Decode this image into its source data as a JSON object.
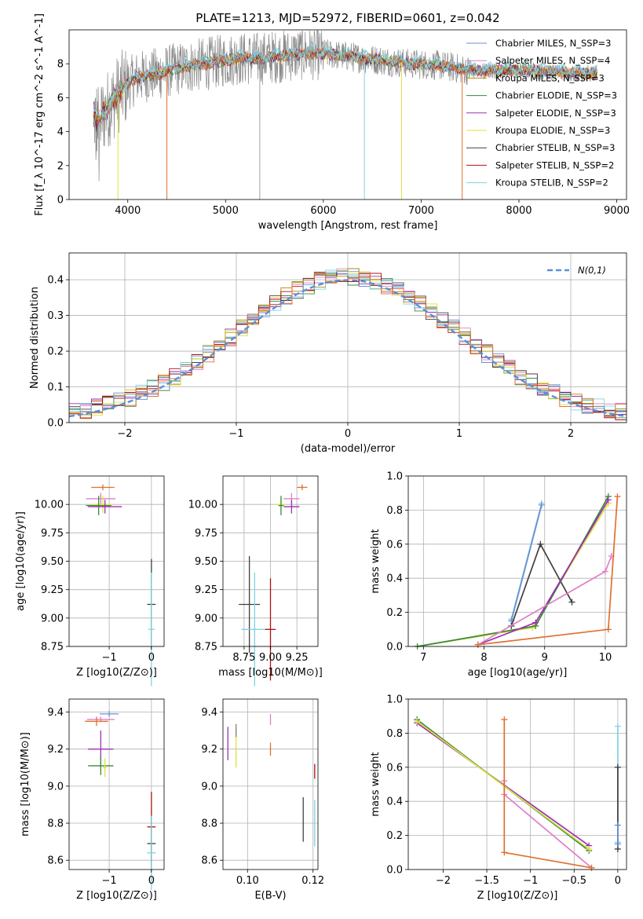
{
  "figure_title": "PLATE=1213, MJD=52972, FIBERID=0601, z=0.042",
  "chart_data": [
    {
      "name": "spectrum",
      "type": "line",
      "xlabel": "wavelength [Angstrom, rest frame]",
      "ylabel": "Flux [f_λ 10^-17 erg cm^-2 s^-1 A^-1]",
      "xlim": [
        3400,
        9100
      ],
      "ylim": [
        0,
        10
      ],
      "xticks": [
        4000,
        5000,
        6000,
        7000,
        8000,
        9000
      ],
      "yticks": [
        0,
        2,
        4,
        6,
        8
      ],
      "legend": "upper right",
      "series": [
        {
          "name": "Chabrier MILES, N_SSP=3",
          "color": "#6b8fd6"
        },
        {
          "name": "Salpeter MILES, N_SSP=4",
          "color": "#e07fc6"
        },
        {
          "name": "Kroupa MILES, N_SSP=3",
          "color": "#b8860b"
        },
        {
          "name": "Chabrier ELODIE, N_SSP=3",
          "color": "#3a8a3a"
        },
        {
          "name": "Salpeter ELODIE, N_SSP=3",
          "color": "#9b30b5"
        },
        {
          "name": "Kroupa ELODIE, N_SSP=3",
          "color": "#e0e040"
        },
        {
          "name": "Chabrier STELIB, N_SSP=3",
          "color": "#404040"
        },
        {
          "name": "Salpeter STELIB, N_SSP=2",
          "color": "#b01010"
        },
        {
          "name": "Kroupa STELIB, N_SSP=2",
          "color": "#7fd3e0"
        }
      ],
      "continuum": [
        [
          3650,
          5.0
        ],
        [
          3700,
          4.6
        ],
        [
          3800,
          5.4
        ],
        [
          3900,
          6.2
        ],
        [
          4000,
          6.8
        ],
        [
          4100,
          7.2
        ],
        [
          4300,
          7.4
        ],
        [
          4500,
          7.7
        ],
        [
          4700,
          7.9
        ],
        [
          4900,
          8.1
        ],
        [
          5100,
          8.3
        ],
        [
          5300,
          8.3
        ],
        [
          5500,
          8.4
        ],
        [
          5800,
          8.6
        ],
        [
          6000,
          8.6
        ],
        [
          6300,
          8.4
        ],
        [
          6600,
          8.2
        ],
        [
          6900,
          8.0
        ],
        [
          7200,
          7.9
        ],
        [
          7500,
          7.6
        ],
        [
          7800,
          7.6
        ],
        [
          8100,
          7.6
        ],
        [
          8400,
          7.5
        ],
        [
          8800,
          7.4
        ]
      ],
      "drops": [
        [
          3900,
          "#e0e040"
        ],
        [
          4400,
          "#e07030"
        ],
        [
          6420,
          "#7fd3e0"
        ],
        [
          6800,
          "#e0e040"
        ],
        [
          7420,
          "#e07030"
        ]
      ]
    },
    {
      "name": "residuals",
      "type": "line",
      "xlabel": "(data-model)/error",
      "ylabel": "Normed distribution",
      "xlim": [
        -2.5,
        2.5
      ],
      "ylim": [
        0,
        0.475
      ],
      "xticks": [
        -2,
        -1,
        0,
        1,
        2
      ],
      "yticks": [
        0.0,
        0.1,
        0.2,
        0.3,
        0.4
      ],
      "legend_label": "N(0,1)",
      "gauss_color": "#5b8fd9"
    },
    {
      "name": "age_vs_Z",
      "type": "scatter",
      "xlabel": "Z [log10(Z/Z⊙)]",
      "ylabel": "age  [log10(age/yr)]",
      "xlim": [
        -1.95,
        0.3
      ],
      "ylim": [
        8.75,
        10.25
      ],
      "xticks": [
        -1,
        0
      ],
      "yticks": [
        8.75,
        9.0,
        9.25,
        9.5,
        9.75,
        10.0
      ],
      "points": [
        {
          "x": -1.15,
          "y": 10.15,
          "xe": 0.55,
          "ye": 0.05,
          "c": "#e07030"
        },
        {
          "x": -1.2,
          "y": 10.05,
          "xe": 0.7,
          "ye": 0.1,
          "c": "#e07fc6"
        },
        {
          "x": -1.15,
          "y": 10.0,
          "xe": 0.5,
          "ye": 0.15,
          "c": "#e0e040"
        },
        {
          "x": -1.25,
          "y": 9.99,
          "xe": 0.6,
          "ye": 0.17,
          "c": "#3a8a3a"
        },
        {
          "x": -1.1,
          "y": 9.98,
          "xe": 0.8,
          "ye": 0.12,
          "c": "#9b30b5"
        },
        {
          "x": 0.0,
          "y": 9.12,
          "xe": 0.2,
          "ye": 0.8,
          "c": "#404040"
        },
        {
          "x": 0.0,
          "y": 8.9,
          "xe": 0.15,
          "ye": 1.0,
          "c": "#7fd3e0"
        }
      ]
    },
    {
      "name": "age_vs_mass",
      "type": "scatter",
      "xlabel": "mass [log10(M/M⊙)]",
      "ylabel": "",
      "xlim": [
        8.55,
        9.45
      ],
      "ylim": [
        8.75,
        10.25
      ],
      "xticks": [
        8.75,
        9.0,
        9.25
      ],
      "yticks": [
        8.75,
        9.0,
        9.25,
        9.5,
        9.75,
        10.0
      ],
      "points": [
        {
          "x": 9.3,
          "y": 10.15,
          "xe": 0.1,
          "ye": 0.05,
          "c": "#e07030"
        },
        {
          "x": 9.2,
          "y": 10.05,
          "xe": 0.15,
          "ye": 0.1,
          "c": "#e07fc6"
        },
        {
          "x": 9.1,
          "y": 10.0,
          "xe": 0.1,
          "ye": 0.12,
          "c": "#e0e040"
        },
        {
          "x": 9.1,
          "y": 9.99,
          "xe": 0.05,
          "ye": 0.17,
          "c": "#3a8a3a"
        },
        {
          "x": 9.2,
          "y": 9.98,
          "xe": 0.15,
          "ye": 0.12,
          "c": "#9b30b5"
        },
        {
          "x": 8.8,
          "y": 9.12,
          "xe": 0.2,
          "ye": 0.85,
          "c": "#404040"
        },
        {
          "x": 8.85,
          "y": 8.9,
          "xe": 0.25,
          "ye": 1.0,
          "c": "#7fd3e0"
        },
        {
          "x": 9.0,
          "y": 8.9,
          "xe": 0.1,
          "ye": 0.9,
          "c": "#b01010"
        }
      ]
    },
    {
      "name": "massweight_vs_age",
      "type": "line",
      "xlabel": "age  [log10(age/yr)]",
      "ylabel": "mass weight",
      "xlim": [
        6.75,
        10.35
      ],
      "ylim": [
        0,
        1.0
      ],
      "xticks": [
        7,
        8,
        9,
        10
      ],
      "yticks": [
        0.0,
        0.2,
        0.4,
        0.6,
        0.8,
        1.0
      ],
      "lines": [
        {
          "c": "#7fd3e0",
          "pts": [
            [
              8.45,
              0.16
            ],
            [
              8.95,
              0.84
            ]
          ]
        },
        {
          "c": "#6b8fd6",
          "pts": [
            [
              8.45,
              0.15
            ],
            [
              8.95,
              0.83
            ]
          ]
        },
        {
          "c": "#404040",
          "pts": [
            [
              8.45,
              0.12
            ],
            [
              8.93,
              0.6
            ],
            [
              9.45,
              0.26
            ]
          ]
        },
        {
          "c": "#e0e040",
          "pts": [
            [
              6.9,
              0.0
            ],
            [
              8.8,
              0.11
            ],
            [
              10.05,
              0.84
            ]
          ]
        },
        {
          "c": "#3a8a3a",
          "pts": [
            [
              6.9,
              0.0
            ],
            [
              8.85,
              0.12
            ],
            [
              10.05,
              0.88
            ]
          ]
        },
        {
          "c": "#9b30b5",
          "pts": [
            [
              7.9,
              0.01
            ],
            [
              8.85,
              0.14
            ],
            [
              10.05,
              0.86
            ]
          ]
        },
        {
          "c": "#e07fc6",
          "pts": [
            [
              7.9,
              0.01
            ],
            [
              10.0,
              0.44
            ],
            [
              10.1,
              0.53
            ]
          ]
        },
        {
          "c": "#e07030",
          "pts": [
            [
              7.9,
              0.01
            ],
            [
              10.05,
              0.1
            ],
            [
              10.2,
              0.88
            ]
          ]
        }
      ]
    },
    {
      "name": "mass_vs_Z",
      "type": "scatter",
      "xlabel": "Z [log10(Z/Z⊙)]",
      "ylabel": "mass [log10(M/M⊙)]",
      "xlim": [
        -1.95,
        0.3
      ],
      "ylim": [
        8.55,
        9.47
      ],
      "xticks": [
        -1,
        0
      ],
      "yticks": [
        8.6,
        8.8,
        9.0,
        9.2,
        9.4
      ],
      "points": [
        {
          "x": -1.0,
          "y": 9.39,
          "xe": 0.45,
          "ye": 0.03,
          "c": "#6b8fd6"
        },
        {
          "x": -1.2,
          "y": 9.36,
          "xe": 0.65,
          "ye": 0.03,
          "c": "#e07fc6"
        },
        {
          "x": -1.3,
          "y": 9.35,
          "xe": 0.55,
          "ye": 0.05,
          "c": "#e07030"
        },
        {
          "x": -1.2,
          "y": 9.2,
          "xe": 0.6,
          "ye": 0.2,
          "c": "#9b30b5"
        },
        {
          "x": -1.2,
          "y": 9.11,
          "xe": 0.6,
          "ye": 0.1,
          "c": "#3a8a3a"
        },
        {
          "x": -1.1,
          "y": 9.1,
          "xe": 0.1,
          "ye": 0.1,
          "c": "#e0e040"
        },
        {
          "x": 0.0,
          "y": 8.78,
          "xe": 0.2,
          "ye": 0.38,
          "c": "#b01010"
        },
        {
          "x": 0.0,
          "y": 8.69,
          "xe": 0.2,
          "ye": 0.3,
          "c": "#404040"
        },
        {
          "x": 0.0,
          "y": 8.64,
          "xe": 0.2,
          "ye": 0.4,
          "c": "#7fd3e0"
        }
      ]
    },
    {
      "name": "mass_vs_EBV",
      "type": "scatter",
      "xlabel": "E(B-V)",
      "ylabel": "",
      "xlim": [
        0.0925,
        0.1215
      ],
      "ylim": [
        8.55,
        9.47
      ],
      "xticks": [
        0.1,
        0.12
      ],
      "yticks": [
        8.6,
        8.8,
        9.0,
        9.2,
        9.4
      ],
      "points": [
        {
          "x": 0.094,
          "y": 9.23,
          "ye": 0.18,
          "c": "#9b30b5"
        },
        {
          "x": 0.0965,
          "y": 9.2,
          "ye": 0.2,
          "c": "#e0e040"
        },
        {
          "x": 0.0965,
          "y": 9.3,
          "ye": 0.07,
          "c": "#7f7f7f"
        },
        {
          "x": 0.107,
          "y": 9.36,
          "ye": 0.06,
          "c": "#e07fc6"
        },
        {
          "x": 0.107,
          "y": 9.2,
          "ye": 0.07,
          "c": "#e07030"
        },
        {
          "x": 0.117,
          "y": 8.82,
          "ye": 0.24,
          "c": "#404040"
        },
        {
          "x": 0.1205,
          "y": 9.08,
          "ye": 0.08,
          "c": "#b01010"
        },
        {
          "x": 0.1205,
          "y": 8.8,
          "ye": 0.25,
          "c": "#7fd3e0"
        }
      ]
    },
    {
      "name": "massweight_vs_Z",
      "type": "line",
      "xlabel": "Z [log10(Z/Z⊙)]",
      "ylabel": "mass weight",
      "xlim": [
        -2.4,
        0.1
      ],
      "ylim": [
        0,
        1.0
      ],
      "xticks": [
        -2.0,
        -1.5,
        -1.0,
        -0.5,
        0.0
      ],
      "yticks": [
        0.0,
        0.2,
        0.4,
        0.6,
        0.8,
        1.0
      ],
      "lines": [
        {
          "c": "#9b30b5",
          "pts": [
            [
              -2.3,
              0.86
            ],
            [
              -0.33,
              0.14
            ]
          ]
        },
        {
          "c": "#3a8a3a",
          "pts": [
            [
              -2.3,
              0.88
            ],
            [
              -0.33,
              0.11
            ]
          ]
        },
        {
          "c": "#e0e040",
          "pts": [
            [
              -2.3,
              0.87
            ],
            [
              -0.33,
              0.12
            ]
          ]
        },
        {
          "c": "#e07fc6",
          "pts": [
            [
              -1.3,
              0.52
            ],
            [
              -1.3,
              0.44
            ],
            [
              -0.3,
              0.01
            ]
          ]
        },
        {
          "c": "#e07030",
          "pts": [
            [
              -1.3,
              0.88
            ],
            [
              -1.3,
              0.1
            ],
            [
              -0.3,
              0.01
            ]
          ]
        },
        {
          "c": "#7fd3e0",
          "pts": [
            [
              0.0,
              0.84
            ],
            [
              0.0,
              0.16
            ]
          ]
        },
        {
          "c": "#404040",
          "pts": [
            [
              0.0,
              0.6
            ],
            [
              0.0,
              0.12
            ]
          ]
        },
        {
          "c": "#6b8fd6",
          "pts": [
            [
              0.0,
              0.26
            ],
            [
              0.0,
              0.15
            ]
          ]
        }
      ]
    }
  ]
}
